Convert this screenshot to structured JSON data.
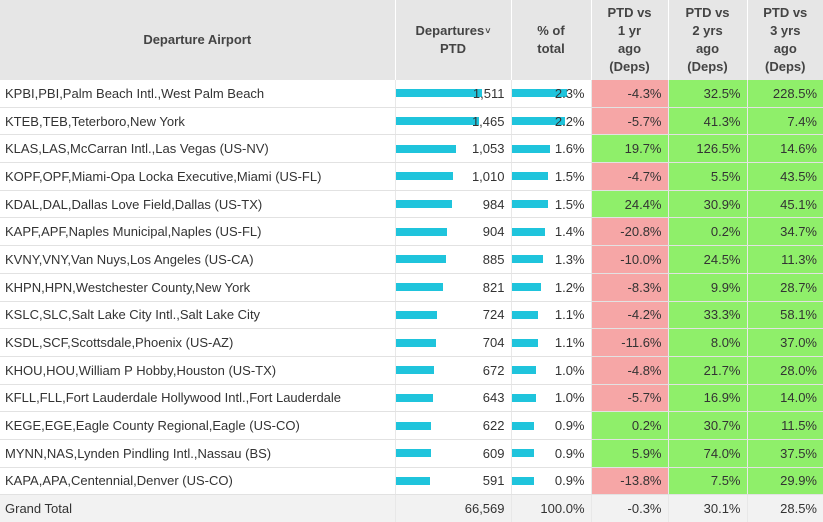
{
  "headers": {
    "airport": "Departure Airport",
    "departures_line1": "Departures",
    "departures_line2": "PTD",
    "sort_indicator": "˅",
    "pct_line1": "% of",
    "pct_line2": "total",
    "y1": [
      "PTD vs",
      "1 yr",
      "ago",
      "(Deps)"
    ],
    "y2": [
      "PTD vs",
      "2 yrs",
      "ago",
      "(Deps)"
    ],
    "y3": [
      "PTD vs",
      "3 yrs",
      "ago",
      "(Deps)"
    ]
  },
  "colors": {
    "bar": "#1fc4dc",
    "negative": "#f6a6a6",
    "positive": "#8fef6a"
  },
  "max_departures": 1511,
  "max_pct": 2.3,
  "rows": [
    {
      "airport": "KPBI,PBI,Palm Beach Intl.,West Palm Beach",
      "departures": "1,511",
      "dep_value": 1511,
      "pct": "2.3%",
      "pct_value": 2.3,
      "y1": "-4.3%",
      "y2": "32.5%",
      "y3": "228.5%"
    },
    {
      "airport": "KTEB,TEB,Teterboro,New York",
      "departures": "1,465",
      "dep_value": 1465,
      "pct": "2.2%",
      "pct_value": 2.2,
      "y1": "-5.7%",
      "y2": "41.3%",
      "y3": "7.4%"
    },
    {
      "airport": "KLAS,LAS,McCarran Intl.,Las Vegas (US-NV)",
      "departures": "1,053",
      "dep_value": 1053,
      "pct": "1.6%",
      "pct_value": 1.6,
      "y1": "19.7%",
      "y2": "126.5%",
      "y3": "14.6%"
    },
    {
      "airport": "KOPF,OPF,Miami-Opa Locka Executive,Miami (US-FL)",
      "departures": "1,010",
      "dep_value": 1010,
      "pct": "1.5%",
      "pct_value": 1.5,
      "y1": "-4.7%",
      "y2": "5.5%",
      "y3": "43.5%"
    },
    {
      "airport": "KDAL,DAL,Dallas Love Field,Dallas (US-TX)",
      "departures": "984",
      "dep_value": 984,
      "pct": "1.5%",
      "pct_value": 1.5,
      "y1": "24.4%",
      "y2": "30.9%",
      "y3": "45.1%"
    },
    {
      "airport": "KAPF,APF,Naples Municipal,Naples (US-FL)",
      "departures": "904",
      "dep_value": 904,
      "pct": "1.4%",
      "pct_value": 1.4,
      "y1": "-20.8%",
      "y2": "0.2%",
      "y3": "34.7%"
    },
    {
      "airport": "KVNY,VNY,Van Nuys,Los Angeles (US-CA)",
      "departures": "885",
      "dep_value": 885,
      "pct": "1.3%",
      "pct_value": 1.3,
      "y1": "-10.0%",
      "y2": "24.5%",
      "y3": "11.3%"
    },
    {
      "airport": "KHPN,HPN,Westchester County,New York",
      "departures": "821",
      "dep_value": 821,
      "pct": "1.2%",
      "pct_value": 1.2,
      "y1": "-8.3%",
      "y2": "9.9%",
      "y3": "28.7%"
    },
    {
      "airport": "KSLC,SLC,Salt Lake City Intl.,Salt Lake City",
      "departures": "724",
      "dep_value": 724,
      "pct": "1.1%",
      "pct_value": 1.1,
      "y1": "-4.2%",
      "y2": "33.3%",
      "y3": "58.1%"
    },
    {
      "airport": "KSDL,SCF,Scottsdale,Phoenix (US-AZ)",
      "departures": "704",
      "dep_value": 704,
      "pct": "1.1%",
      "pct_value": 1.1,
      "y1": "-11.6%",
      "y2": "8.0%",
      "y3": "37.0%"
    },
    {
      "airport": "KHOU,HOU,William P Hobby,Houston (US-TX)",
      "departures": "672",
      "dep_value": 672,
      "pct": "1.0%",
      "pct_value": 1.0,
      "y1": "-4.8%",
      "y2": "21.7%",
      "y3": "28.0%"
    },
    {
      "airport": "KFLL,FLL,Fort Lauderdale Hollywood Intl.,Fort Lauderdale",
      "departures": "643",
      "dep_value": 643,
      "pct": "1.0%",
      "pct_value": 1.0,
      "y1": "-5.7%",
      "y2": "16.9%",
      "y3": "14.0%"
    },
    {
      "airport": "KEGE,EGE,Eagle County Regional,Eagle (US-CO)",
      "departures": "622",
      "dep_value": 622,
      "pct": "0.9%",
      "pct_value": 0.9,
      "y1": "0.2%",
      "y2": "30.7%",
      "y3": "11.5%"
    },
    {
      "airport": "MYNN,NAS,Lynden Pindling Intl.,Nassau (BS)",
      "departures": "609",
      "dep_value": 609,
      "pct": "0.9%",
      "pct_value": 0.9,
      "y1": "5.9%",
      "y2": "74.0%",
      "y3": "37.5%"
    },
    {
      "airport": "KAPA,APA,Centennial,Denver (US-CO)",
      "departures": "591",
      "dep_value": 591,
      "pct": "0.9%",
      "pct_value": 0.9,
      "y1": "-13.8%",
      "y2": "7.5%",
      "y3": "29.9%"
    }
  ],
  "total": {
    "label": "Grand Total",
    "departures": "66,569",
    "pct": "100.0%",
    "y1": "-0.3%",
    "y2": "30.1%",
    "y3": "28.5%"
  }
}
